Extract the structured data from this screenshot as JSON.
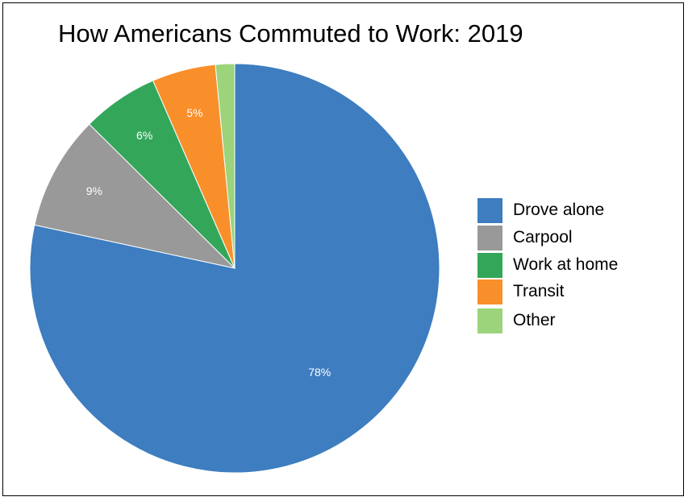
{
  "chart_data": {
    "type": "pie",
    "title": "How Americans Commuted to Work: 2019",
    "slices": [
      {
        "name": "Drove alone",
        "value": 78,
        "label": "78%",
        "color": "#3d7dc0"
      },
      {
        "name": "Carpool",
        "value": 9,
        "label": "9%",
        "color": "#999999"
      },
      {
        "name": "Work at home",
        "value": 6,
        "label": "6%",
        "color": "#33a65a"
      },
      {
        "name": "Transit",
        "value": 5,
        "label": "5%",
        "color": "#f98f2b"
      },
      {
        "name": "Other",
        "value": 1.5,
        "label": "",
        "color": "#9bd47b"
      }
    ],
    "legend_position": "right"
  }
}
